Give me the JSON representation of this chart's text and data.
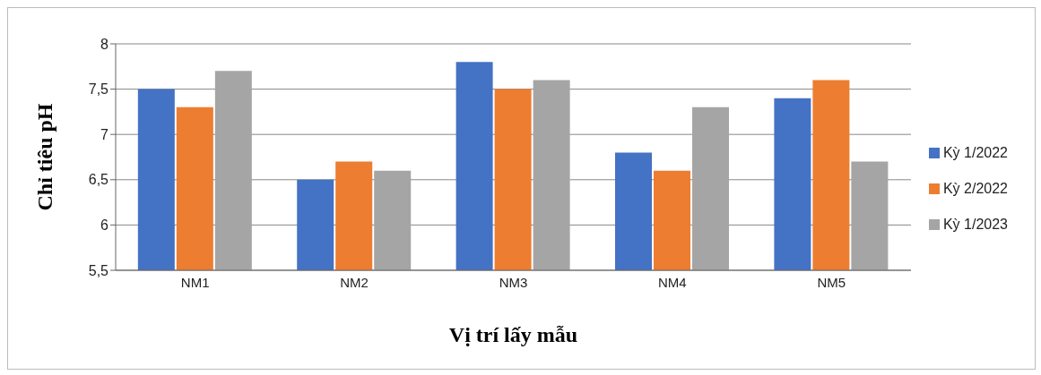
{
  "chart_data": {
    "type": "bar",
    "xlabel": "Vị trí lấy mẫu",
    "ylabel": "Chỉ tiêu pH",
    "categories": [
      "NM1",
      "NM2",
      "NM3",
      "NM4",
      "NM5"
    ],
    "series": [
      {
        "name": "Kỳ 1/2022",
        "color": "#4472c4",
        "values": [
          7.5,
          6.5,
          7.8,
          6.8,
          7.4
        ]
      },
      {
        "name": "Kỳ 2/2022",
        "color": "#ed7d31",
        "values": [
          7.3,
          6.7,
          7.5,
          6.6,
          7.6
        ]
      },
      {
        "name": "Kỳ 1/2023",
        "color": "#a5a5a5",
        "values": [
          7.7,
          6.6,
          7.6,
          7.3,
          6.7
        ]
      }
    ],
    "ylim": [
      5.5,
      8
    ],
    "yticks": [
      {
        "value": 5.5,
        "label": "5,5"
      },
      6,
      {
        "value": 6.5,
        "label": "6,5"
      },
      7,
      {
        "value": 7.5,
        "label": "7,5"
      },
      8
    ],
    "grid": "y",
    "legend": "right"
  }
}
